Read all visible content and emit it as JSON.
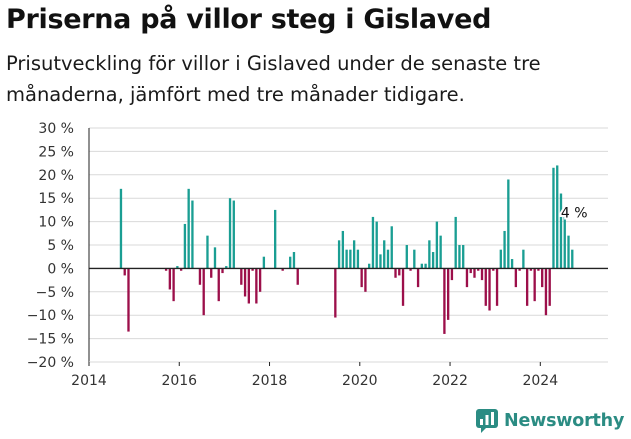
{
  "header": {
    "title": "Priserna på villor steg i Gislaved",
    "subtitle": "Prisutveckling för villor i Gislaved under de senaste tre månaderna, jämfört med tre månader tidigare."
  },
  "brand": {
    "name": "Newsworthy"
  },
  "colors": {
    "positive": "#1a9e93",
    "negative": "#9c0f4a",
    "grid": "#d9d9d9",
    "axis": "#222222"
  },
  "chart_data": {
    "type": "bar",
    "title": "Priserna på villor steg i Gislaved",
    "subtitle": "Prisutveckling för villor i Gislaved under de senaste tre månaderna, jämfört med tre månader tidigare.",
    "xlabel": "",
    "ylabel": "",
    "xlim": [
      2014,
      2025.5
    ],
    "ylim": [
      -20,
      30
    ],
    "y_ticks": [
      -20,
      -15,
      -10,
      -5,
      0,
      5,
      10,
      15,
      20,
      25,
      30
    ],
    "y_tick_labels": [
      "−20 %",
      "−15 %",
      "−10 %",
      "−5 %",
      "0 %",
      "5 %",
      "10 %",
      "15 %",
      "20 %",
      "25 %",
      "30 %"
    ],
    "x_ticks": [
      2014,
      2016,
      2018,
      2020,
      2022,
      2024
    ],
    "x_tick_labels": [
      "2014",
      "2016",
      "2018",
      "2020",
      "2022",
      "2024"
    ],
    "grid": "horizontal",
    "annotation": {
      "x": "2024-09",
      "value": 4,
      "text": "4 %"
    },
    "x": [
      "2014-09",
      "2014-10",
      "2014-11",
      "2015-09",
      "2015-10",
      "2015-11",
      "2015-12",
      "2016-01",
      "2016-02",
      "2016-03",
      "2016-04",
      "2016-05",
      "2016-06",
      "2016-07",
      "2016-08",
      "2016-09",
      "2016-10",
      "2016-11",
      "2016-12",
      "2017-01",
      "2017-02",
      "2017-03",
      "2017-04",
      "2017-05",
      "2017-06",
      "2017-07",
      "2017-08",
      "2017-09",
      "2017-10",
      "2017-11",
      "2017-12",
      "2018-02",
      "2018-04",
      "2018-05",
      "2018-06",
      "2018-07",
      "2018-08",
      "2019-06",
      "2019-07",
      "2019-08",
      "2019-09",
      "2019-10",
      "2019-11",
      "2019-12",
      "2020-01",
      "2020-02",
      "2020-03",
      "2020-04",
      "2020-05",
      "2020-06",
      "2020-07",
      "2020-08",
      "2020-09",
      "2020-10",
      "2020-11",
      "2020-12",
      "2021-01",
      "2021-02",
      "2021-03",
      "2021-04",
      "2021-05",
      "2021-06",
      "2021-07",
      "2021-08",
      "2021-09",
      "2021-10",
      "2021-11",
      "2021-12",
      "2022-01",
      "2022-02",
      "2022-03",
      "2022-04",
      "2022-05",
      "2022-06",
      "2022-07",
      "2022-08",
      "2022-09",
      "2022-10",
      "2022-11",
      "2022-12",
      "2023-01",
      "2023-02",
      "2023-03",
      "2023-04",
      "2023-05",
      "2023-06",
      "2023-07",
      "2023-08",
      "2023-09",
      "2023-10",
      "2023-11",
      "2023-12",
      "2024-01",
      "2024-02",
      "2024-03",
      "2024-04",
      "2024-05",
      "2024-06",
      "2024-07",
      "2024-08",
      "2024-09"
    ],
    "values": [
      17,
      -1.5,
      -13.5,
      -0.5,
      -4.5,
      -7,
      0.5,
      -0.5,
      9.5,
      17,
      14.5,
      0,
      -3.5,
      -10,
      7,
      -2,
      4.5,
      -7,
      -1,
      0.5,
      15,
      14.5,
      0,
      -3.5,
      -6,
      -7.5,
      -0.5,
      -7.5,
      -5,
      2.5,
      0,
      12.5,
      -0.5,
      0,
      2.5,
      3.5,
      -3.5,
      -10.5,
      6,
      8,
      4,
      4,
      6,
      4,
      -4,
      -5,
      1,
      11,
      10,
      3,
      6,
      4,
      9,
      -2,
      -1.5,
      -8,
      5,
      -0.5,
      4,
      -4,
      1,
      1,
      6,
      3.5,
      10,
      7,
      -14,
      -11,
      -2.5,
      11,
      5,
      5,
      -4,
      -1,
      -2,
      -0.5,
      -2.5,
      -8,
      -9,
      -0.5,
      -8,
      4,
      8,
      19,
      2,
      -4,
      -0.5,
      4,
      -8,
      -0.5,
      -7,
      -0.5,
      -4,
      -10,
      -8,
      21.5,
      22,
      16,
      13,
      7,
      4
    ]
  }
}
